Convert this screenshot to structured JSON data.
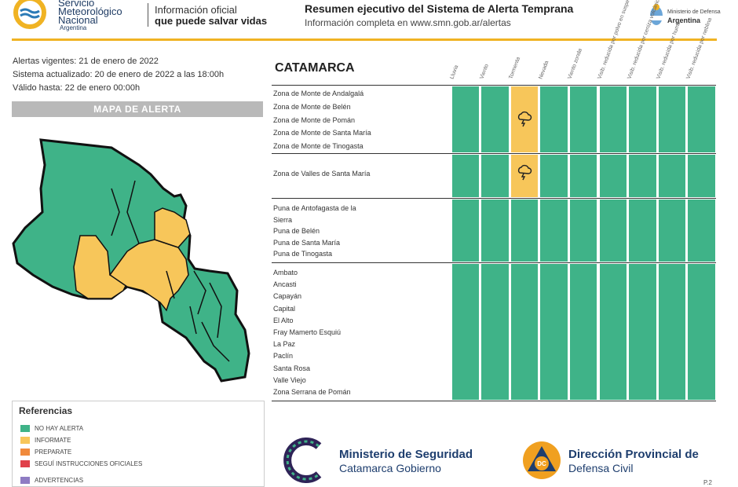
{
  "header": {
    "org_line1": "Servicio",
    "org_line2": "Meteorológico",
    "org_line3": "Nacional",
    "org_line4": "Argentina",
    "info_line1": "Información oficial",
    "info_line2": "que puede salvar vidas",
    "title": "Resumen ejecutivo del Sistema de Alerta Temprana",
    "subtitle": "Información completa en www.smn.gob.ar/alertas",
    "ministry_small": "Ministerio de Defensa",
    "ministry_country": "Argentina"
  },
  "dates": {
    "vigentes": "Alertas vigentes: 21 de enero de 2022",
    "actualizado": "Sistema actualizado: 20 de enero de 2022 a las 18:00h",
    "valido": "Válido hasta: 22 de enero 00:00h"
  },
  "map_title": "MAPA DE ALERTA",
  "references": {
    "title": "Referencias",
    "items": [
      {
        "label": "NO HAY ALERTA",
        "color": "#3fb388"
      },
      {
        "label": "INFORMATE",
        "color": "#f7c65a"
      },
      {
        "label": "PREPARATE",
        "color": "#f08a3c"
      },
      {
        "label": "SEGUÍ INSTRUCCIONES OFICIALES",
        "color": "#e0404a"
      },
      {
        "label": "ADVERTENCIAS",
        "color": "#8e7cc3"
      }
    ]
  },
  "region": "CATAMARCA",
  "columns": [
    "Lluvia",
    "Viento",
    "Tormenta",
    "Nevada",
    "Viento zonda",
    "Visib. reducida por polvo en suspensión",
    "Visib. reducida por ceniza volcánica",
    "Visib. reducida por humo",
    "Visib. reducida por neblina"
  ],
  "groups": [
    {
      "zones": [
        "Zona de Monte de Andalgalá",
        "Zona de Monte de Belén",
        "Zona de Monte de Pomán",
        "Zona de Monte de Santa María",
        "Zona de Monte de Tinogasta"
      ],
      "storm": true
    },
    {
      "zones": [
        "Zona de Valles de Santa María"
      ],
      "storm": true
    },
    {
      "zones": [
        "Puna de Antofagasta de la",
        "Sierra",
        "Puna de Belén",
        "Puna de Santa María",
        "Puna de Tinogasta"
      ],
      "storm": false
    },
    {
      "zones": [
        "Ambato",
        "Ancasti",
        "Capayán",
        "Capital",
        "El Alto",
        "Fray Mamerto Esquiú",
        "La Paz",
        "Paclín",
        "Santa Rosa",
        "Valle Viejo",
        "Zona Serrana de Pomán"
      ],
      "storm": false
    }
  ],
  "footer": {
    "seg_line1": "Ministerio de Seguridad",
    "seg_line2": "Catamarca Gobierno",
    "dc_line1": "Dirección Provincial de",
    "dc_line2": "Defensa Civil",
    "dc_badge": "DC",
    "page": "P.2"
  },
  "colors": {
    "green": "#3fb388",
    "yellow": "#f7c65a",
    "accent": "#f0b323"
  }
}
